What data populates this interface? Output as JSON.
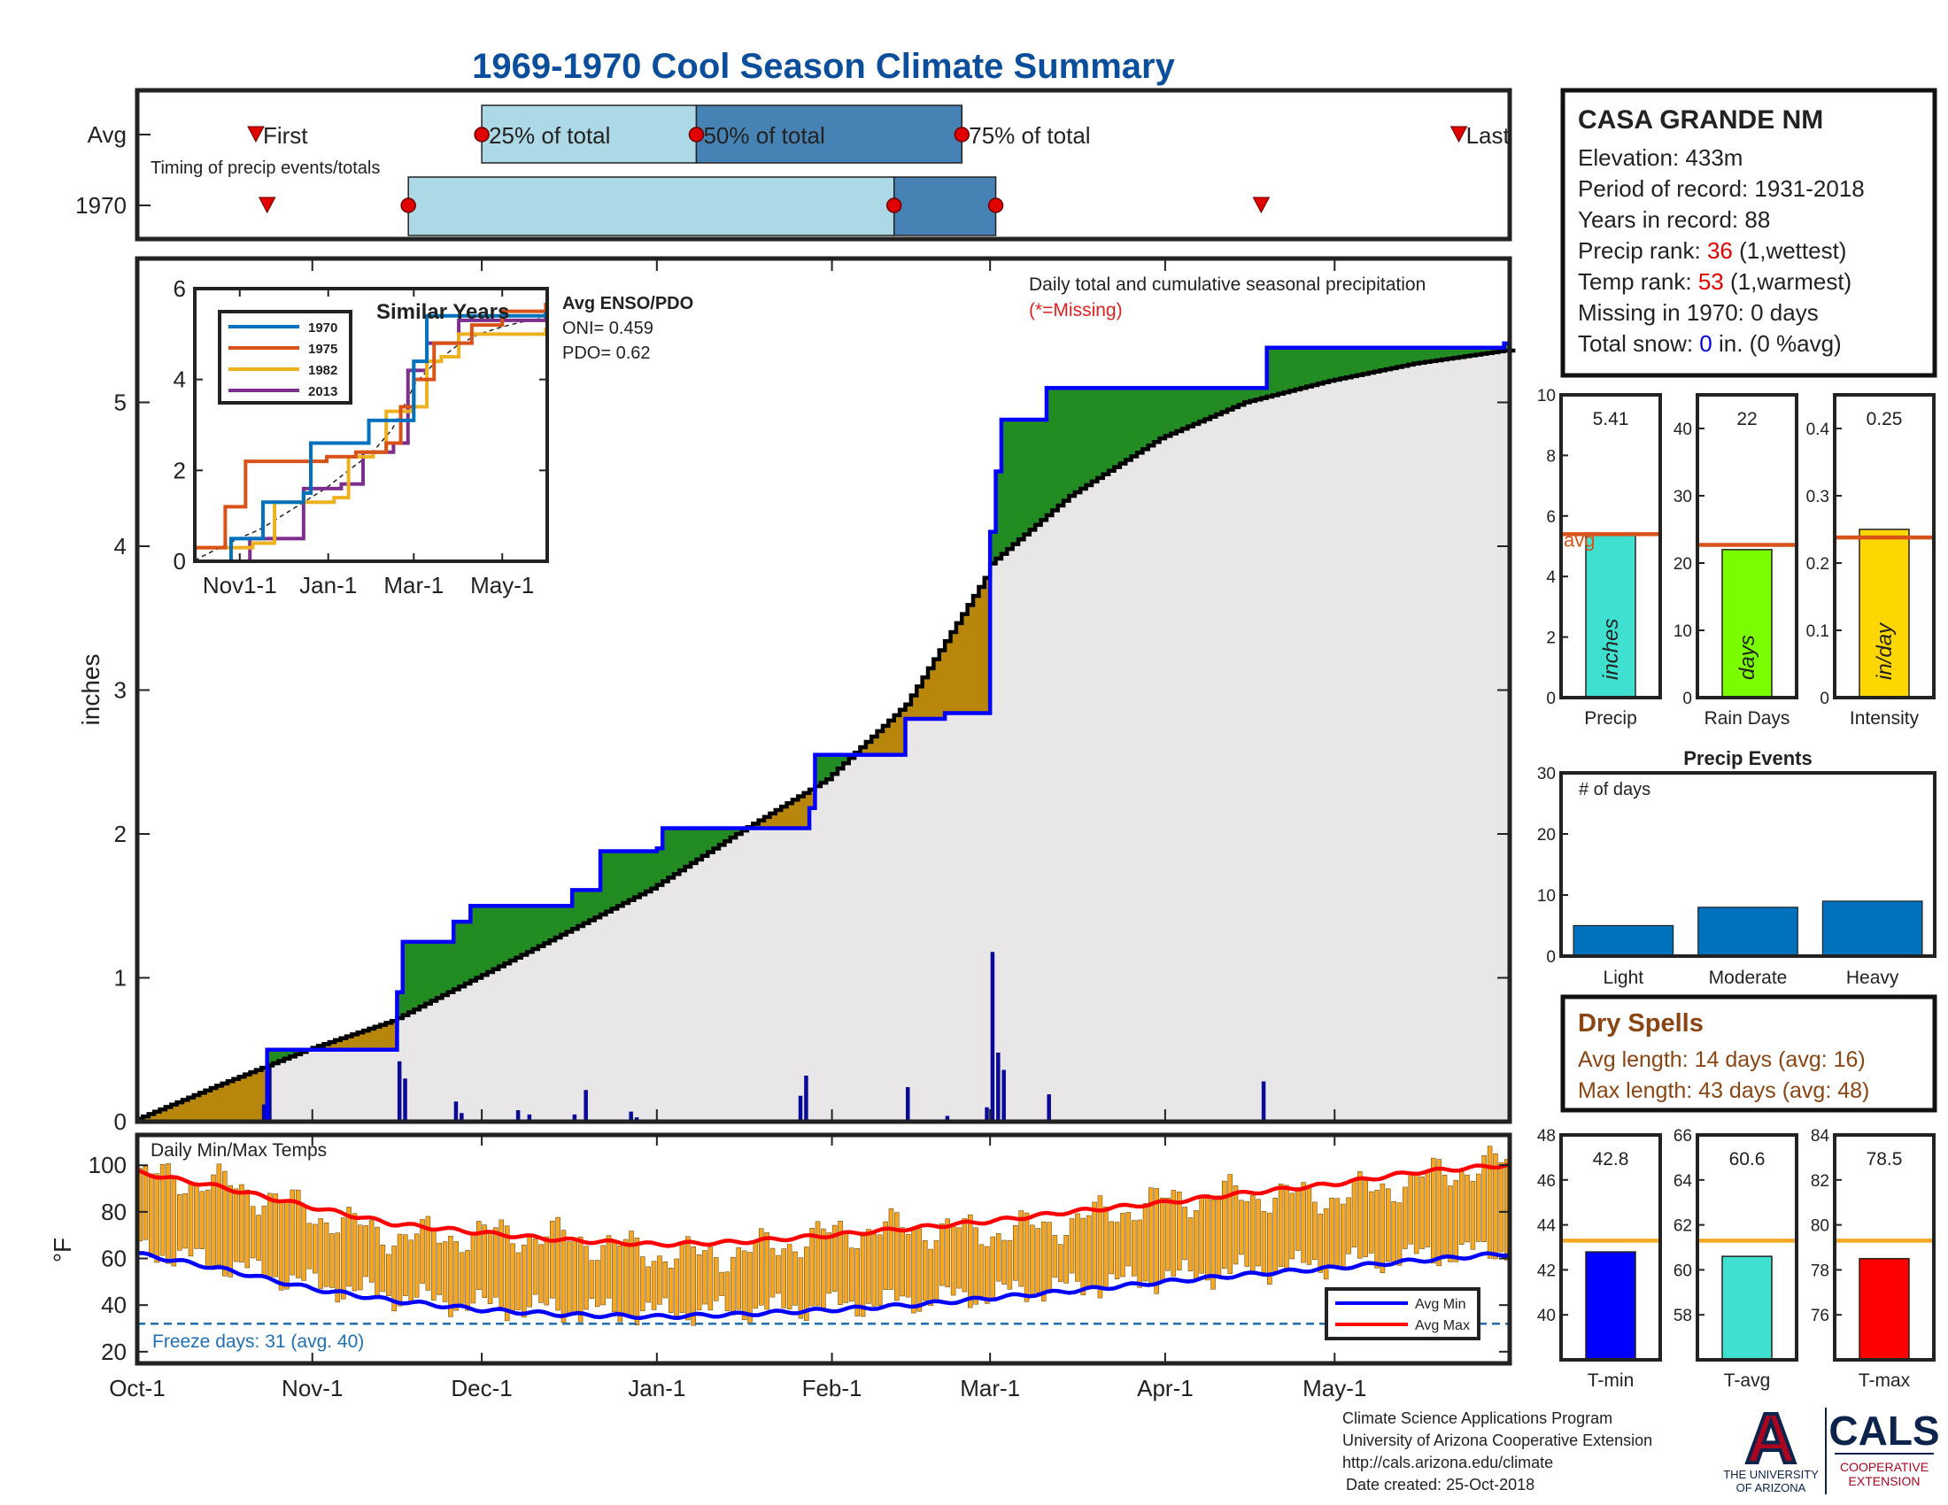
{
  "title": "1969-1970 Cool Season Climate Summary",
  "timing": {
    "label": "Timing of precip events/totals",
    "rows": [
      "Avg",
      "1970"
    ],
    "avg_labels": {
      "first": "First",
      "p25": "25% of total",
      "p50": "50% of total",
      "p75": "75% of total",
      "last": "Last"
    },
    "avg": {
      "first": "1969-10-22",
      "p25": "1969-12-01",
      "p50": "1970-01-08",
      "p75": "1970-02-24",
      "last": "1970-05-23"
    },
    "y1970": {
      "first": "1969-10-24",
      "p25": "1969-11-18",
      "p50": "1970-02-12",
      "p75": "1970-03-02",
      "last": "1970-04-18"
    },
    "colors": {
      "q1": "#add8e6",
      "q2": "#4682b4",
      "marker": "#e00000"
    }
  },
  "station": {
    "name": "CASA GRANDE NM",
    "elevation_label": "Elevation: 433m",
    "period_label": "Period of record: 1931-2018",
    "years_label": "Years in record: 88",
    "precip_rank_prefix": "Precip rank: ",
    "precip_rank": "36",
    "precip_rank_suffix": " (1,wettest)",
    "temp_rank_prefix": "Temp rank: ",
    "temp_rank": "53",
    "temp_rank_suffix": " (1,warmest)",
    "missing_label": "Missing in 1970: 0 days",
    "snow_prefix": "Total snow: ",
    "snow_value": "0",
    "snow_suffix": " in. (0 %avg)"
  },
  "main_chart": {
    "ylabel": "inches",
    "ylim": [
      0,
      6
    ],
    "yticks": [
      "0",
      "1",
      "2",
      "3",
      "4",
      "5"
    ],
    "note": "Daily total and cumulative seasonal precipitation",
    "missing_note": "(*=Missing)",
    "enso_title": "Avg ENSO/PDO",
    "oni_label": "ONI= 0.459",
    "pdo_label": "PDO= 0.62",
    "colors": {
      "observed": "#0000ff",
      "average": "#000000",
      "above": "#228b22",
      "below": "#b8860b",
      "fill": "#e8e6e6",
      "daily": "#0a0a9a"
    }
  },
  "chart_data": [
    {
      "id": "cumulative_precip",
      "type": "line",
      "x_range": [
        "1969-10-01",
        "1970-05-31"
      ],
      "ylim": [
        0,
        6
      ],
      "series": [
        {
          "name": "1970",
          "points": [
            [
              "1969-10-01",
              0
            ],
            [
              "1969-10-24",
              0.5
            ],
            [
              "1969-11-15",
              0.5
            ],
            [
              "1969-11-16",
              0.9
            ],
            [
              "1969-11-17",
              1.25
            ],
            [
              "1969-11-25",
              1.25
            ],
            [
              "1969-11-26",
              1.39
            ],
            [
              "1969-11-29",
              1.5
            ],
            [
              "1969-12-16",
              1.5
            ],
            [
              "1969-12-17",
              1.61
            ],
            [
              "1969-12-21",
              1.61
            ],
            [
              "1969-12-22",
              1.88
            ],
            [
              "1969-12-31",
              1.88
            ],
            [
              "1970-01-01",
              1.9
            ],
            [
              "1970-01-02",
              2.04
            ],
            [
              "1970-01-27",
              2.04
            ],
            [
              "1970-01-28",
              2.18
            ],
            [
              "1970-01-29",
              2.55
            ],
            [
              "1970-02-12",
              2.55
            ],
            [
              "1970-02-13",
              2.55
            ],
            [
              "1970-02-14",
              2.8
            ],
            [
              "1970-02-20",
              2.8
            ],
            [
              "1970-02-21",
              2.84
            ],
            [
              "1970-02-28",
              2.84
            ],
            [
              "1970-03-01",
              4.1
            ],
            [
              "1970-03-02",
              4.52
            ],
            [
              "1970-03-03",
              4.88
            ],
            [
              "1970-03-10",
              4.88
            ],
            [
              "1970-03-11",
              5.1
            ],
            [
              "1970-04-18",
              5.1
            ],
            [
              "1970-04-19",
              5.38
            ],
            [
              "1970-05-31",
              5.41
            ]
          ]
        },
        {
          "name": "Avg",
          "points": [
            [
              "1969-10-01",
              0.02
            ],
            [
              "1969-10-15",
              0.25
            ],
            [
              "1969-10-31",
              0.5
            ],
            [
              "1969-11-15",
              0.7
            ],
            [
              "1969-11-30",
              1.0
            ],
            [
              "1969-12-15",
              1.3
            ],
            [
              "1969-12-31",
              1.62
            ],
            [
              "1970-01-15",
              2.0
            ],
            [
              "1970-01-31",
              2.38
            ],
            [
              "1970-02-14",
              2.9
            ],
            [
              "1970-02-28",
              3.78
            ],
            [
              "1970-03-01",
              3.88
            ],
            [
              "1970-03-15",
              4.35
            ],
            [
              "1970-03-31",
              4.75
            ],
            [
              "1970-04-15",
              5.0
            ],
            [
              "1970-04-30",
              5.15
            ],
            [
              "1970-05-15",
              5.27
            ],
            [
              "1970-05-31",
              5.36
            ]
          ]
        }
      ],
      "daily": [
        [
          "1969-10-23",
          0.12
        ],
        [
          "1969-10-24",
          0.38
        ],
        [
          "1969-11-16",
          0.42
        ],
        [
          "1969-11-17",
          0.3
        ],
        [
          "1969-11-26",
          0.14
        ],
        [
          "1969-11-27",
          0.06
        ],
        [
          "1969-12-07",
          0.08
        ],
        [
          "1969-12-09",
          0.05
        ],
        [
          "1969-12-17",
          0.05
        ],
        [
          "1969-12-19",
          0.22
        ],
        [
          "1969-12-27",
          0.07
        ],
        [
          "1969-12-28",
          0.03
        ],
        [
          "1970-01-26",
          0.18
        ],
        [
          "1970-01-27",
          0.32
        ],
        [
          "1970-02-14",
          0.24
        ],
        [
          "1970-02-21",
          0.04
        ],
        [
          "1970-02-28",
          0.1
        ],
        [
          "1970-03-01",
          1.18
        ],
        [
          "1970-03-02",
          0.48
        ],
        [
          "1970-03-03",
          0.36
        ],
        [
          "1970-03-11",
          0.19
        ],
        [
          "1970-04-18",
          0.28
        ]
      ]
    },
    {
      "id": "similar_years",
      "type": "line",
      "title": "Similar Years",
      "ylim": [
        0,
        6
      ],
      "xticks": [
        "Nov1-1",
        "Jan-1",
        "Mar-1",
        "May-1"
      ],
      "yticks": [
        "0",
        "2",
        "4",
        "6"
      ],
      "series": [
        {
          "name": "1970",
          "color": "#0072bd",
          "points": [
            [
              "1969-10-01",
              0
            ],
            [
              "1969-10-25",
              0
            ],
            [
              "1969-10-26",
              0.5
            ],
            [
              "1969-11-16",
              0.5
            ],
            [
              "1969-11-17",
              1.3
            ],
            [
              "1969-12-15",
              1.5
            ],
            [
              "1969-12-20",
              2.6
            ],
            [
              "1970-01-28",
              2.6
            ],
            [
              "1970-01-29",
              3.1
            ],
            [
              "1970-02-28",
              3.1
            ],
            [
              "1970-03-01",
              4.4
            ],
            [
              "1970-03-10",
              5.4
            ],
            [
              "1970-04-18",
              5.4
            ],
            [
              "1970-05-31",
              5.45
            ]
          ]
        },
        {
          "name": "1975",
          "color": "#d95319",
          "points": [
            [
              "1969-10-01",
              0.3
            ],
            [
              "1969-10-20",
              0.3
            ],
            [
              "1969-10-22",
              1.2
            ],
            [
              "1969-11-01",
              1.2
            ],
            [
              "1969-11-05",
              2.2
            ],
            [
              "1969-12-31",
              2.3
            ],
            [
              "1970-01-20",
              2.4
            ],
            [
              "1970-02-10",
              2.6
            ],
            [
              "1970-02-20",
              3.4
            ],
            [
              "1970-03-01",
              4.0
            ],
            [
              "1970-03-15",
              4.8
            ],
            [
              "1970-04-10",
              5.2
            ],
            [
              "1970-05-01",
              5.5
            ],
            [
              "1970-05-31",
              5.65
            ]
          ]
        },
        {
          "name": "1982",
          "color": "#edb120",
          "points": [
            [
              "1969-10-01",
              0.3
            ],
            [
              "1969-11-10",
              0.4
            ],
            [
              "1969-11-25",
              1.3
            ],
            [
              "1970-01-05",
              1.4
            ],
            [
              "1970-01-15",
              2.3
            ],
            [
              "1970-02-01",
              2.4
            ],
            [
              "1970-02-10",
              3.3
            ],
            [
              "1970-02-28",
              3.4
            ],
            [
              "1970-03-10",
              4.4
            ],
            [
              "1970-03-20",
              4.5
            ],
            [
              "1970-04-01",
              5.0
            ],
            [
              "1970-05-31",
              5.1
            ]
          ]
        },
        {
          "name": "2013",
          "color": "#7e2f8e",
          "points": [
            [
              "1969-10-01",
              0
            ],
            [
              "1969-11-05",
              0
            ],
            [
              "1969-11-08",
              0.5
            ],
            [
              "1969-12-10",
              0.5
            ],
            [
              "1969-12-15",
              1.6
            ],
            [
              "1970-01-10",
              1.7
            ],
            [
              "1970-01-25",
              2.4
            ],
            [
              "1970-02-15",
              2.6
            ],
            [
              "1970-02-25",
              4.2
            ],
            [
              "1970-03-10",
              4.8
            ],
            [
              "1970-04-01",
              5.3
            ],
            [
              "1970-05-31",
              5.4
            ]
          ]
        }
      ]
    },
    {
      "id": "precip_stats",
      "type": "bar",
      "categories": [
        "Precip",
        "Rain Days",
        "Intensity"
      ],
      "values": [
        5.41,
        22,
        0.25
      ],
      "value_labels": [
        "5.41",
        "22",
        "0.25"
      ],
      "averages": [
        5.4,
        22.7,
        0.238
      ],
      "units": [
        "inches",
        "days",
        "in/day"
      ],
      "avg_label": "avg",
      "ylims": [
        [
          0,
          10
        ],
        [
          0,
          45
        ],
        [
          0,
          0.45
        ]
      ],
      "ytick_labels": [
        [
          "0",
          "2",
          "4",
          "6",
          "8",
          "10"
        ],
        [
          "0",
          "10",
          "20",
          "30",
          "40"
        ],
        [
          "0",
          "0.1",
          "0.2",
          "0.3",
          "0.4"
        ]
      ],
      "colors": [
        "#40e0d0",
        "#7cfc00",
        "#ffd700"
      ]
    },
    {
      "id": "precip_events",
      "type": "bar",
      "title": "Precip Events",
      "ylabel": "# of days",
      "categories": [
        "Light",
        "Moderate",
        "Heavy"
      ],
      "values": [
        5,
        8,
        9
      ],
      "ylim": [
        0,
        30
      ],
      "yticks": [
        "0",
        "10",
        "20",
        "30"
      ],
      "color": "#0072bd"
    },
    {
      "id": "daily_temps",
      "type": "bar",
      "label": "Daily Min/Max Temps",
      "ylabel": "°F",
      "ylim": [
        15,
        113
      ],
      "yticks": [
        "20",
        "40",
        "60",
        "80",
        "100"
      ],
      "freeze_line": 32,
      "freeze_label": "Freeze days: 31 (avg. 40)",
      "legend": [
        "Avg Min",
        "Avg Max"
      ],
      "avg_max_points": [
        [
          "1969-10-01",
          97
        ],
        [
          "1969-10-15",
          91
        ],
        [
          "1969-11-01",
          82
        ],
        [
          "1969-11-15",
          75
        ],
        [
          "1969-12-01",
          71
        ],
        [
          "1969-12-15",
          68
        ],
        [
          "1970-01-01",
          66
        ],
        [
          "1970-01-15",
          67
        ],
        [
          "1970-02-01",
          70
        ],
        [
          "1970-02-15",
          73
        ],
        [
          "1970-03-01",
          76
        ],
        [
          "1970-03-15",
          80
        ],
        [
          "1970-04-01",
          84
        ],
        [
          "1970-04-15",
          88
        ],
        [
          "1970-05-01",
          92
        ],
        [
          "1970-05-15",
          97
        ],
        [
          "1970-05-31",
          100
        ]
      ],
      "avg_min_points": [
        [
          "1969-10-01",
          62
        ],
        [
          "1969-10-15",
          56
        ],
        [
          "1969-11-01",
          47
        ],
        [
          "1969-11-15",
          42
        ],
        [
          "1969-12-01",
          38
        ],
        [
          "1969-12-15",
          36
        ],
        [
          "1970-01-01",
          35
        ],
        [
          "1970-01-15",
          36
        ],
        [
          "1970-02-01",
          38
        ],
        [
          "1970-02-15",
          40
        ],
        [
          "1970-03-01",
          43
        ],
        [
          "1970-03-15",
          46
        ],
        [
          "1970-04-01",
          50
        ],
        [
          "1970-04-15",
          53
        ],
        [
          "1970-05-01",
          56
        ],
        [
          "1970-05-15",
          59
        ],
        [
          "1970-05-31",
          62
        ]
      ],
      "colors": {
        "bars": "#f5a623",
        "avg_max": "#ff0000",
        "avg_min": "#0000ff",
        "freeze": "#1f6fb4"
      }
    },
    {
      "id": "temp_stats",
      "type": "bar",
      "categories": [
        "T-min",
        "T-avg",
        "T-max"
      ],
      "values": [
        42.8,
        60.6,
        78.5
      ],
      "value_labels": [
        "42.8",
        "60.6",
        "78.5"
      ],
      "averages": [
        43.3,
        61.3,
        79.3
      ],
      "ylims": [
        [
          38,
          48
        ],
        [
          56,
          66
        ],
        [
          74,
          84
        ]
      ],
      "ytick_labels": [
        [
          "40",
          "42",
          "44",
          "46",
          "48"
        ],
        [
          "58",
          "60",
          "62",
          "64",
          "66"
        ],
        [
          "76",
          "78",
          "80",
          "82",
          "84"
        ]
      ],
      "colors": [
        "#0000ff",
        "#40e0d0",
        "#ff0000"
      ]
    }
  ],
  "x_axis_labels": [
    "Oct-1",
    "Nov-1",
    "Dec-1",
    "Jan-1",
    "Feb-1",
    "Mar-1",
    "Apr-1",
    "May-1"
  ],
  "dry_spells": {
    "title": "Dry Spells",
    "avg_label": "Avg length: 14 days (avg: 16)",
    "max_label": "Max length: 43 days (avg: 48)"
  },
  "footer": {
    "line1": "Climate Science Applications Program",
    "line2": "University of Arizona Cooperative Extension",
    "line3": "http://cals.arizona.edu/climate",
    "line4": "Date created: 25-Oct-2018"
  },
  "logos": {
    "ua_letter": "A",
    "ua_line1": "THE UNIVERSITY",
    "ua_line2": "OF ARIZONA",
    "cals": "CALS",
    "cals_line1": "COOPERATIVE",
    "cals_line2": "EXTENSION"
  }
}
